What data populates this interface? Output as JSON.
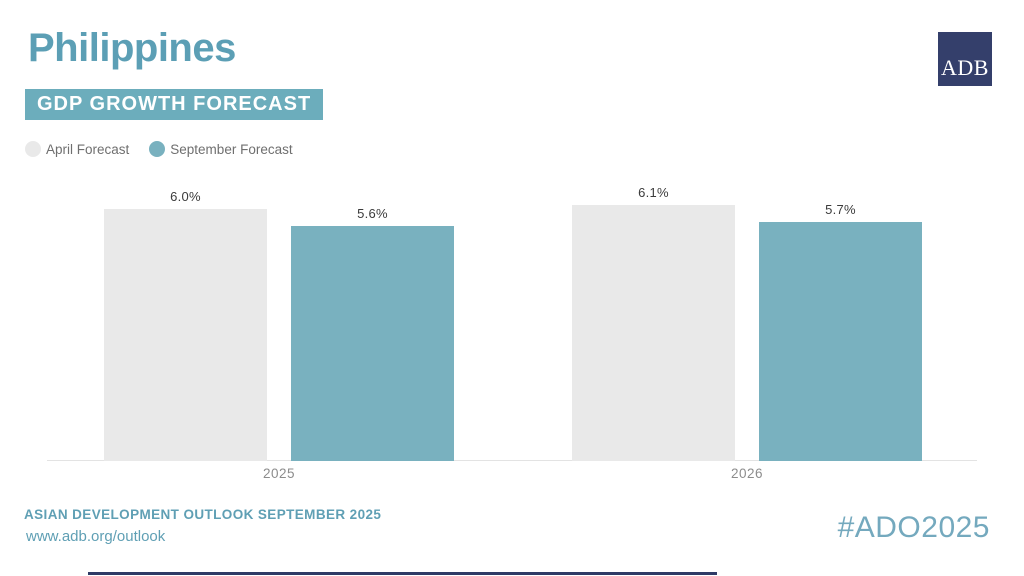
{
  "header": {
    "country": "Philippines",
    "subtitle_badge": "GDP GROWTH FORECAST"
  },
  "logo": {
    "text": "ADB"
  },
  "legend": {
    "items": [
      {
        "label": "April Forecast",
        "color": "#E9E9E9"
      },
      {
        "label": "September Forecast",
        "color": "#79B1BF"
      }
    ]
  },
  "chart_data": {
    "type": "bar",
    "title": "Philippines — GDP Growth Forecast",
    "categories": [
      "2025",
      "2026"
    ],
    "series": [
      {
        "name": "April Forecast",
        "color": "#E9E9E9",
        "values": [
          6.0,
          6.1
        ],
        "labels": [
          "6.0%",
          "6.1%"
        ]
      },
      {
        "name": "September Forecast",
        "color": "#79B1BF",
        "values": [
          5.6,
          5.7
        ],
        "labels": [
          "5.6%",
          "5.7%"
        ]
      }
    ],
    "ylabel": "",
    "xlabel": "",
    "ylim": [
      0,
      6.45
    ],
    "grid": false,
    "legend_position": "top-left",
    "value_label_format": "0.0%"
  },
  "footer": {
    "line1": "ASIAN DEVELOPMENT OUTLOOK SEPTEMBER 2025",
    "line2": "www.adb.org/outlook",
    "hashtag": "#ADO2025"
  },
  "colors": {
    "title_teal": "#5C9FB5",
    "badge_teal": "#6CADBC",
    "bar_teal": "#79B1BF",
    "bar_gray": "#E9E9E9",
    "footer_teal": "#5F9FB4",
    "hashtag_teal": "#74A9BE",
    "logo_navy": "#343F6B",
    "accent_bar_navy": "#2E3A66",
    "baseline_gray": "#E3E3E3"
  }
}
